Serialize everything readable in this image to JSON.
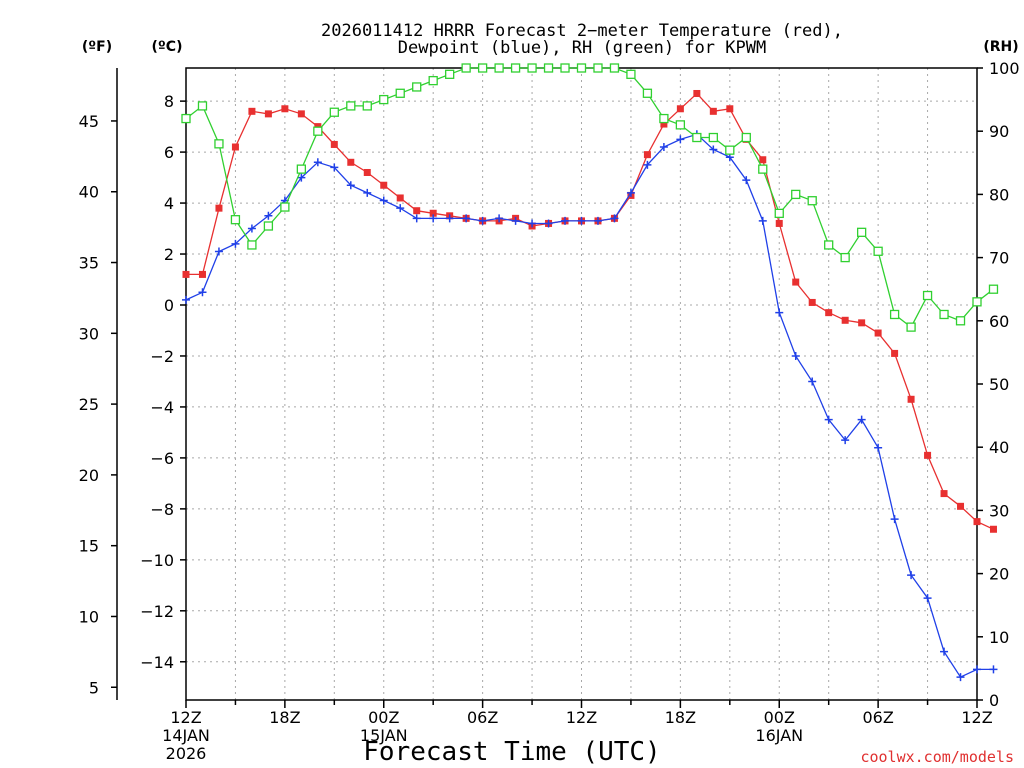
{
  "chart_data": {
    "type": "line",
    "title_line1": "2026011412 HRRR Forecast 2−meter Temperature (red),",
    "title_line2": "Dewpoint (blue), RH (green) for KPWM",
    "xlabel": "Forecast Time (UTC)",
    "units": {
      "fahrenheit": "(ºF)",
      "celsius": "(ºC)",
      "rh": "(RH)"
    },
    "watermark": "coolwx.com/models",
    "x_range": [
      0,
      48
    ],
    "x_ticks": [
      {
        "x": 0,
        "label": "12Z",
        "sub1": "14JAN",
        "sub2": "2026"
      },
      {
        "x": 6,
        "label": "18Z",
        "sub1": "",
        "sub2": ""
      },
      {
        "x": 12,
        "label": "00Z",
        "sub1": "15JAN",
        "sub2": ""
      },
      {
        "x": 18,
        "label": "06Z",
        "sub1": "",
        "sub2": ""
      },
      {
        "x": 24,
        "label": "12Z",
        "sub1": "",
        "sub2": ""
      },
      {
        "x": 30,
        "label": "18Z",
        "sub1": "",
        "sub2": ""
      },
      {
        "x": 36,
        "label": "00Z",
        "sub1": "16JAN",
        "sub2": ""
      },
      {
        "x": 42,
        "label": "06Z",
        "sub1": "",
        "sub2": ""
      },
      {
        "x": 48,
        "label": "12Z",
        "sub1": "",
        "sub2": ""
      }
    ],
    "celsius_range": [
      -15.5,
      9.3
    ],
    "celsius_ticks": [
      {
        "v": 8,
        "label": "8"
      },
      {
        "v": 6,
        "label": "6"
      },
      {
        "v": 4,
        "label": "4"
      },
      {
        "v": 2,
        "label": "2"
      },
      {
        "v": 0,
        "label": "0"
      },
      {
        "v": -2,
        "label": "−2"
      },
      {
        "v": -4,
        "label": "−4"
      },
      {
        "v": -6,
        "label": "−6"
      },
      {
        "v": -8,
        "label": "−8"
      },
      {
        "v": -10,
        "label": "−10"
      },
      {
        "v": -12,
        "label": "−12"
      },
      {
        "v": -14,
        "label": "−14"
      }
    ],
    "fahrenheit_ticks": [
      {
        "v": 45,
        "label": "45"
      },
      {
        "v": 40,
        "label": "40"
      },
      {
        "v": 35,
        "label": "35"
      },
      {
        "v": 30,
        "label": "30"
      },
      {
        "v": 25,
        "label": "25"
      },
      {
        "v": 20,
        "label": "20"
      },
      {
        "v": 15,
        "label": "15"
      },
      {
        "v": 10,
        "label": "10"
      },
      {
        "v": 5,
        "label": "5"
      }
    ],
    "rh_range": [
      0,
      100
    ],
    "rh_ticks": [
      {
        "v": 100,
        "label": "100"
      },
      {
        "v": 90,
        "label": "90"
      },
      {
        "v": 80,
        "label": "80"
      },
      {
        "v": 70,
        "label": "70"
      },
      {
        "v": 60,
        "label": "60"
      },
      {
        "v": 50,
        "label": "50"
      },
      {
        "v": 40,
        "label": "40"
      },
      {
        "v": 30,
        "label": "30"
      },
      {
        "v": 20,
        "label": "20"
      },
      {
        "v": 10,
        "label": "10"
      },
      {
        "v": 0,
        "label": "0"
      }
    ],
    "series": [
      {
        "name": "Temperature",
        "axis": "celsius",
        "color": "#e83030",
        "marker": "filled-square",
        "values": [
          1.2,
          1.2,
          3.8,
          6.2,
          7.6,
          7.5,
          7.7,
          7.5,
          7.0,
          6.3,
          5.6,
          5.2,
          4.7,
          4.2,
          3.7,
          3.6,
          3.5,
          3.4,
          3.3,
          3.3,
          3.4,
          3.1,
          3.2,
          3.3,
          3.3,
          3.3,
          3.4,
          4.3,
          5.9,
          7.1,
          7.7,
          8.3,
          7.6,
          7.7,
          6.5,
          5.7,
          3.2,
          0.9,
          0.1,
          -0.3,
          -0.6,
          -0.7,
          -1.1,
          -1.9,
          -3.7,
          -5.9,
          -7.4,
          -7.9,
          -8.5,
          -8.8
        ]
      },
      {
        "name": "Dewpoint",
        "axis": "celsius",
        "color": "#2040e8",
        "marker": "plus",
        "values": [
          0.2,
          0.5,
          2.1,
          2.4,
          3.0,
          3.5,
          4.1,
          5.0,
          5.6,
          5.4,
          4.7,
          4.4,
          4.1,
          3.8,
          3.4,
          3.4,
          3.4,
          3.4,
          3.3,
          3.4,
          3.3,
          3.2,
          3.2,
          3.3,
          3.3,
          3.3,
          3.4,
          4.4,
          5.5,
          6.2,
          6.5,
          6.7,
          6.1,
          5.8,
          4.9,
          3.3,
          -0.3,
          -2.0,
          -3.0,
          -4.5,
          -5.3,
          -4.5,
          -5.6,
          -8.4,
          -10.6,
          -11.5,
          -13.6,
          -14.6,
          -14.3,
          -14.3
        ]
      },
      {
        "name": "RH",
        "axis": "rh",
        "color": "#30d030",
        "marker": "open-square",
        "values": [
          92,
          94,
          88,
          76,
          72,
          75,
          78,
          84,
          90,
          93,
          94,
          94,
          95,
          96,
          97,
          98,
          99,
          100,
          100,
          100,
          100,
          100,
          100,
          100,
          100,
          100,
          100,
          99,
          96,
          92,
          91,
          89,
          89,
          87,
          89,
          84,
          77,
          80,
          79,
          72,
          70,
          74,
          71,
          61,
          59,
          64,
          61,
          60,
          63,
          65
        ]
      }
    ]
  }
}
